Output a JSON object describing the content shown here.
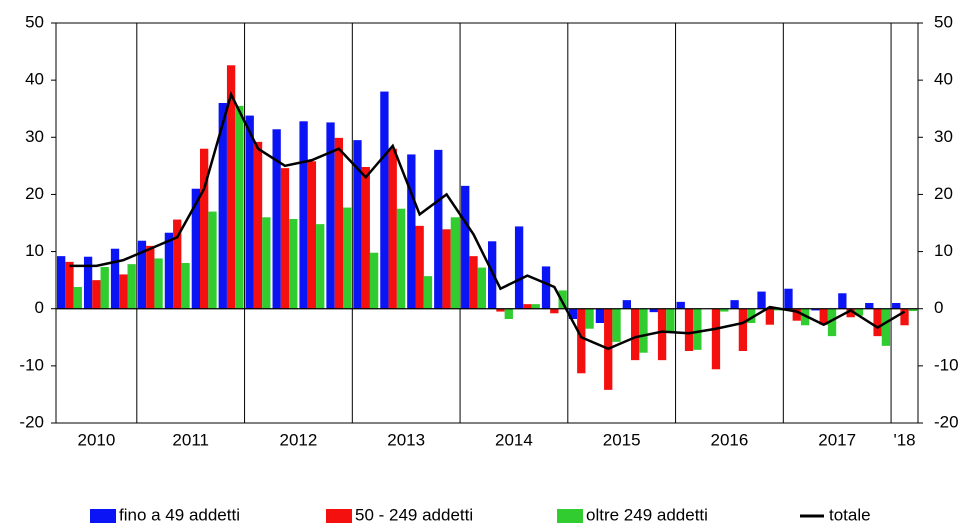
{
  "chart_data": {
    "type": "bar",
    "categories": [
      "2010",
      "2010",
      "2010",
      "2011",
      "2011",
      "2011",
      "2011",
      "2012",
      "2012",
      "2012",
      "2012",
      "2013",
      "2013",
      "2013",
      "2013",
      "2014",
      "2014",
      "2014",
      "2014",
      "2015",
      "2015",
      "2015",
      "2015",
      "2016",
      "2016",
      "2016",
      "2016",
      "2017",
      "2017",
      "2017",
      "2017",
      "'18"
    ],
    "series": [
      {
        "name": "fino a 49 addetti",
        "color": "#0a14f5",
        "values": [
          9.2,
          9.1,
          10.5,
          11.9,
          13.3,
          21,
          36,
          33.8,
          31.4,
          32.8,
          32.6,
          29.5,
          38,
          27,
          27.8,
          21.5,
          11.8,
          14.4,
          7.4,
          -1.8,
          -2.5,
          1.5,
          -0.6,
          1.2,
          0,
          1.5,
          3,
          3.5,
          -0.3,
          2.7,
          1,
          1
        ]
      },
      {
        "name": "50 - 249 addetti",
        "color": "#f51010",
        "values": [
          8.2,
          5,
          6,
          11,
          15.6,
          28,
          42.6,
          29.2,
          24.6,
          25.8,
          29.9,
          24.8,
          28,
          14.5,
          13.9,
          9.2,
          -0.5,
          0.8,
          -0.8,
          -11.3,
          -14.2,
          -9,
          -9,
          -7.4,
          -10.6,
          -7.4,
          -2.8,
          -2.1,
          -2.8,
          -1.5,
          -4.8,
          -2.9
        ]
      },
      {
        "name": "oltre 249 addetti",
        "color": "#30cc30",
        "values": [
          3.8,
          7.3,
          7.8,
          8.8,
          8,
          17,
          35.5,
          16,
          15.7,
          14.8,
          17.7,
          9.8,
          17.5,
          5.7,
          16,
          7.2,
          -1.8,
          0.8,
          3.2,
          -3.5,
          -5.8,
          -7.7,
          -4,
          -7.2,
          -0.5,
          -2.5,
          -0.3,
          -2.9,
          -4.8,
          -1.2,
          -6.5,
          -0.4
        ]
      },
      {
        "name": "totale",
        "type": "line",
        "color": "#000000",
        "values": [
          7.5,
          7.5,
          8.5,
          10.5,
          12.5,
          21,
          37.5,
          28,
          25,
          26,
          28,
          23,
          28.5,
          16.5,
          20,
          13,
          3.5,
          5.8,
          3.8,
          -5,
          -7,
          -5,
          -4,
          -4.3,
          -3.5,
          -2.5,
          0.3,
          -0.5,
          -2.8,
          -0.3,
          -3.3,
          -0.5
        ]
      }
    ],
    "ylim": [
      -20,
      50
    ],
    "yticks": [
      -20,
      -10,
      0,
      10,
      20,
      30,
      40,
      50
    ],
    "y2lim": [
      -20,
      50
    ],
    "y2ticks": [
      -20,
      -10,
      0,
      10,
      20,
      30,
      40,
      50
    ],
    "legend": "bottom"
  }
}
